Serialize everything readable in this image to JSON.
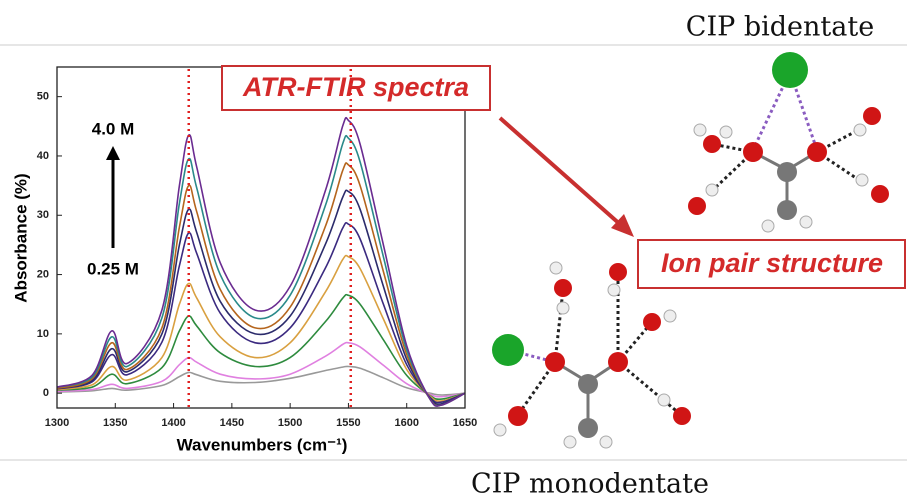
{
  "chart_data": {
    "type": "line",
    "x_label": "Wavenumbers (cm⁻¹)",
    "y_label": "Absorbance (%)",
    "x": [
      1300,
      1330,
      1347,
      1360,
      1390,
      1405,
      1413,
      1420,
      1440,
      1470,
      1500,
      1530,
      1545,
      1550,
      1560,
      1580,
      1600,
      1620,
      1630,
      1650
    ],
    "series": [
      {
        "color": "#6a2c91",
        "values": [
          1,
          3,
          10.5,
          5,
          14,
          35,
          43.5,
          38,
          22,
          14,
          18,
          34,
          45,
          46,
          42,
          25,
          8,
          -1,
          -2,
          0
        ]
      },
      {
        "color": "#2a8a8a",
        "values": [
          1,
          2.7,
          9.5,
          4.5,
          12.7,
          32,
          39.5,
          34.5,
          20,
          12.7,
          16.5,
          31.5,
          42,
          43,
          39,
          23,
          7.3,
          -1,
          -2,
          0
        ]
      },
      {
        "color": "#b5651d",
        "values": [
          0.8,
          2.4,
          8.5,
          4,
          11,
          28,
          35,
          30.5,
          17.5,
          11,
          14.5,
          28,
          37.5,
          38.5,
          35,
          20.5,
          6.5,
          -1,
          -2,
          0
        ]
      },
      {
        "color": "#2b2b6b",
        "values": [
          0.8,
          2.1,
          7.5,
          3.6,
          10,
          25,
          31,
          27,
          15.5,
          10,
          13,
          25,
          33,
          34,
          31,
          18,
          5.7,
          -0.8,
          -1.8,
          0
        ]
      },
      {
        "color": "#3b2a80",
        "values": [
          0.7,
          1.9,
          6.5,
          3.1,
          8.6,
          21.5,
          27,
          23.5,
          13.5,
          8.5,
          11,
          21,
          27.8,
          28.5,
          26,
          15,
          4.8,
          -0.7,
          -1.5,
          0
        ]
      },
      {
        "color": "#d9a040",
        "values": [
          0.6,
          1.4,
          4.5,
          2.2,
          6,
          15,
          18.5,
          16,
          9.5,
          6,
          8.5,
          17,
          22.5,
          23,
          21,
          12.5,
          4,
          -0.5,
          -1.3,
          0
        ]
      },
      {
        "color": "#2e8b3e",
        "values": [
          0.5,
          1,
          3.2,
          1.6,
          4.3,
          10.5,
          13,
          11.3,
          6.8,
          4.5,
          6,
          12,
          16,
          16.5,
          15,
          9,
          3,
          -0.4,
          -1,
          0
        ]
      },
      {
        "color": "#e080e0",
        "values": [
          0.3,
          0.6,
          1.5,
          0.8,
          2,
          4.8,
          6,
          5.2,
          3.2,
          2.4,
          3.2,
          6.2,
          8.2,
          8.5,
          7.8,
          4.7,
          1.6,
          -0.2,
          -0.6,
          0
        ]
      },
      {
        "color": "#999999",
        "values": [
          0.2,
          0.4,
          0.8,
          0.5,
          1.3,
          2.8,
          3.5,
          3.1,
          2,
          1.8,
          2.5,
          3.8,
          4.4,
          4.5,
          4.2,
          2.6,
          0.9,
          0,
          -0.3,
          0
        ]
      }
    ],
    "reference_lines": [
      1413,
      1552
    ],
    "reference_color": "#e02020",
    "xlim": [
      1300,
      1650
    ],
    "xticks": [
      1300,
      1350,
      1400,
      1450,
      1500,
      1550,
      1600,
      1650
    ],
    "ylim": [
      -2.5,
      55
    ],
    "yticks": [
      0,
      10,
      20,
      30,
      40,
      50
    ],
    "annotations": [
      "4.0 M",
      "0.25 M",
      "ATR-FTIR spectra",
      "Ion pair structure",
      "CIP bidentate",
      "CIP monodentate"
    ]
  }
}
